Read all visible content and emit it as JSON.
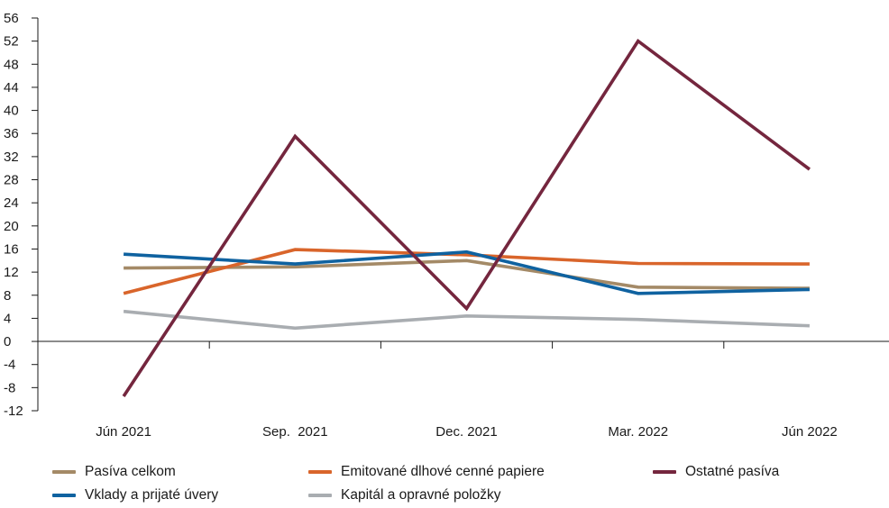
{
  "chart_data": {
    "type": "line",
    "categories": [
      "Jún 2021",
      "Sep.  2021",
      "Dec. 2021",
      "Mar. 2022",
      "Jún 2022"
    ],
    "ylim": [
      -12,
      56
    ],
    "yticks": [
      "56",
      "52",
      "48",
      "44",
      "40",
      "36",
      "32",
      "28",
      "24",
      "20",
      "16",
      "12",
      "8",
      "4",
      "0",
      "-4",
      "-8",
      "-12"
    ],
    "legend_placement": "bottom",
    "grid": false,
    "series": [
      {
        "key": "pasiva",
        "name": "Pasíva celkom",
        "color": "#a48a67",
        "values": [
          12.7,
          12.9,
          14.0,
          9.4,
          9.2
        ]
      },
      {
        "key": "emitovane",
        "name": "Emitované dlhové cenné papiere",
        "color": "#d9652b",
        "values": [
          8.3,
          15.9,
          15.0,
          13.5,
          13.4
        ]
      },
      {
        "key": "ostatne",
        "name": "Ostatné pasíva",
        "color": "#74263e",
        "values": [
          -9.5,
          35.5,
          5.7,
          52.0,
          29.8
        ]
      },
      {
        "key": "vklady",
        "name": "Vklady a prijaté úvery",
        "color": "#0f62a0",
        "values": [
          15.1,
          13.4,
          15.5,
          8.3,
          9.0
        ]
      },
      {
        "key": "kapital",
        "name": "Kapitál a opravné položky",
        "color": "#a9adb1",
        "values": [
          5.2,
          2.3,
          4.4,
          3.8,
          2.7
        ]
      }
    ]
  }
}
